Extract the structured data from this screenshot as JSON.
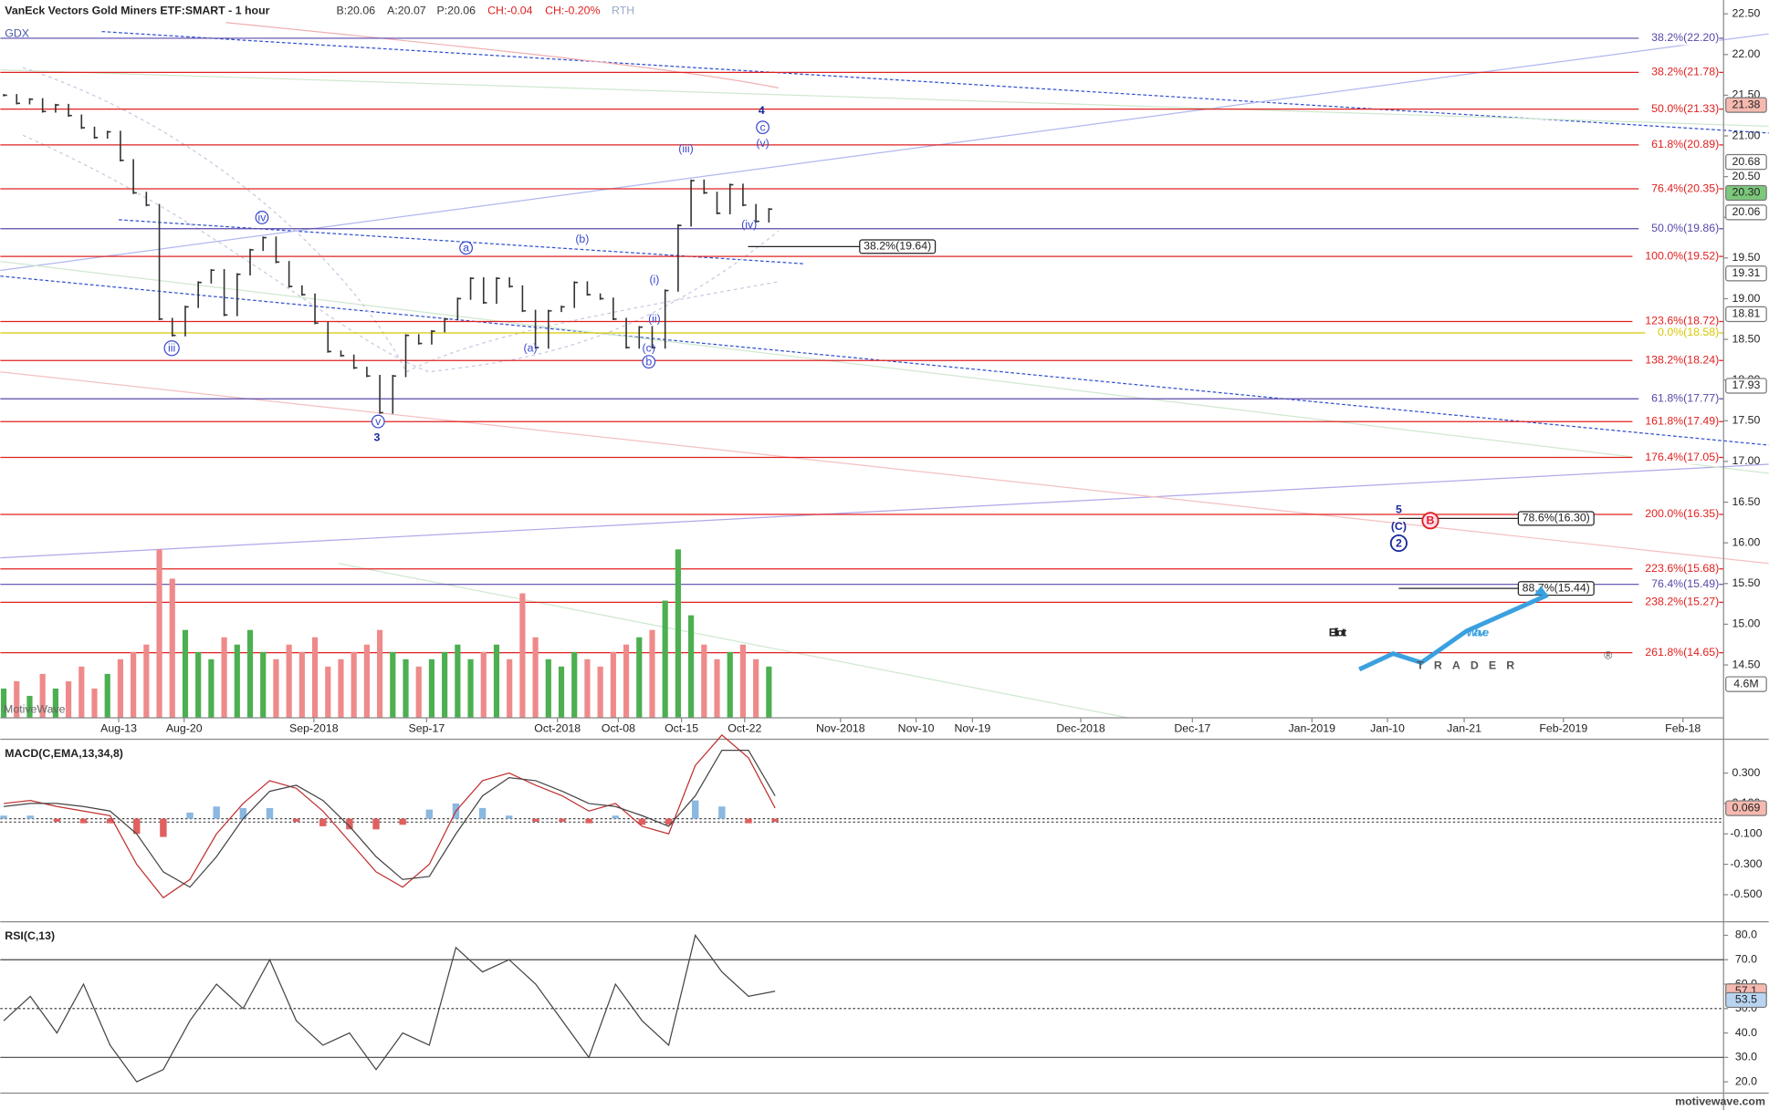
{
  "chart_data": [
    {
      "type": "ohlc",
      "title": "VanEck Vectors Gold Miners ETF:SMART - 1 hour",
      "symbol": "GDX",
      "quote": [
        {
          "text": "B:20.06",
          "color": "#333333"
        },
        {
          "text": "A:20.07",
          "color": "#333333"
        },
        {
          "text": "P:20.06",
          "color": "#333333"
        },
        {
          "text": "CH:-0.04",
          "color": "#e02020"
        },
        {
          "text": "CH:-0.20%",
          "color": "#e02020"
        },
        {
          "text": "RTH",
          "color": "#9aa8c8"
        }
      ],
      "watermark": "MotiveWave",
      "ylim": [
        13.85,
        22.67
      ],
      "yticks": [
        {
          "value": 14.5,
          "label": "14.50"
        },
        {
          "value": 15,
          "label": "15.00"
        },
        {
          "value": 15.5,
          "label": "15.50"
        },
        {
          "value": 16,
          "label": "16.00"
        },
        {
          "value": 16.5,
          "label": "16.50"
        },
        {
          "value": 17,
          "label": "17.00"
        },
        {
          "value": 17.5,
          "label": "17.50"
        },
        {
          "value": 18,
          "label": "18.00"
        },
        {
          "value": 18.5,
          "label": "18.50"
        },
        {
          "value": 19,
          "label": "19.00"
        },
        {
          "value": 19.5,
          "label": "19.50"
        },
        {
          "value": 20,
          "label": "20.00"
        },
        {
          "value": 20.5,
          "label": "20.50"
        },
        {
          "value": 21,
          "label": "21.00"
        },
        {
          "value": 21.5,
          "label": "21.50"
        },
        {
          "value": 22,
          "label": "22.00"
        },
        {
          "value": 22.5,
          "label": "22.50"
        }
      ],
      "xticks": [
        "Aug-13",
        "Aug-20",
        "Sep-2018",
        "Sep-17",
        "Oct-2018",
        "Oct-08",
        "Oct-15",
        "Oct-22",
        "Nov-2018",
        "Nov-10",
        "Nov-19",
        "Dec-2018",
        "Dec-17",
        "Jan-2019",
        "Jan-10",
        "Jan-21",
        "Feb-2019",
        "Feb-18"
      ],
      "bar_color": "#333333",
      "close": [
        21.5,
        21.4,
        21.45,
        21.3,
        21.38,
        21.25,
        21.1,
        20.98,
        21.05,
        20.7,
        20.3,
        20.15,
        18.75,
        18.55,
        18.9,
        19.2,
        19.35,
        18.8,
        19.3,
        19.6,
        19.75,
        19.45,
        19.15,
        19.05,
        18.7,
        18.35,
        18.3,
        18.15,
        18.05,
        17.6,
        18.05,
        18.55,
        18.45,
        18.6,
        18.75,
        19.0,
        19.25,
        18.95,
        19.25,
        19.15,
        18.85,
        18.4,
        18.85,
        18.9,
        19.2,
        19.05,
        19.0,
        18.75,
        18.4,
        18.65,
        18.4,
        19.1,
        19.9,
        20.45,
        20.3,
        20.05,
        20.4,
        20.15,
        19.95,
        20.1
      ],
      "volume": {
        "up_color": "#4caf50",
        "down_color": "#ef8a8a",
        "values": [
          4,
          5,
          3,
          6,
          4,
          5,
          7,
          4,
          6,
          8,
          9,
          10,
          23,
          19,
          12,
          9,
          8,
          11,
          10,
          12,
          9,
          8,
          10,
          9,
          11,
          7,
          8,
          9,
          10,
          12,
          9,
          8,
          7,
          8,
          9,
          10,
          8,
          9,
          10,
          8,
          17,
          11,
          8,
          7,
          9,
          8,
          7,
          9,
          10,
          11,
          12,
          16,
          23,
          14,
          10,
          8,
          9,
          10,
          8,
          7
        ],
        "badge": {
          "value": 4.6,
          "label": "4.6M"
        }
      },
      "levels": [
        {
          "label": "38.2%(22.20)",
          "value": 22.2,
          "color": "#5a48a8"
        },
        {
          "label": "38.2%(21.78)",
          "value": 21.78,
          "color": "#e02020"
        },
        {
          "label": "50.0%(21.33)",
          "value": 21.33,
          "color": "#e02020"
        },
        {
          "label": "61.8%(20.89)",
          "value": 20.89,
          "color": "#e02020"
        },
        {
          "label": "76.4%(20.35)",
          "value": 20.35,
          "color": "#e02020"
        },
        {
          "label": "50.0%(19.86)",
          "value": 19.86,
          "color": "#5a48a8"
        },
        {
          "label": "100.0%(19.52)",
          "value": 19.52,
          "color": "#e02020"
        },
        {
          "label": "123.6%(18.72)",
          "value": 18.72,
          "color": "#e02020"
        },
        {
          "label": "0.0%(18.58)",
          "value": 18.58,
          "color": "#d8c800"
        },
        {
          "label": "138.2%(18.24)",
          "value": 18.24,
          "color": "#e02020"
        },
        {
          "label": "61.8%(17.77)",
          "value": 17.77,
          "color": "#5a48a8"
        },
        {
          "label": "161.8%(17.49)",
          "value": 17.49,
          "color": "#e02020"
        },
        {
          "label": "176.4%(17.05)",
          "value": 17.05,
          "color": "#e02020"
        },
        {
          "label": "200.0%(16.35)",
          "value": 16.35,
          "color": "#e02020"
        },
        {
          "label": "223.6%(15.68)",
          "value": 15.68,
          "color": "#e02020"
        },
        {
          "label": "76.4%(15.49)",
          "value": 15.49,
          "color": "#5a48a8"
        },
        {
          "label": "238.2%(15.27)",
          "value": 15.27,
          "color": "#e02020"
        },
        {
          "label": "261.8%(14.65)",
          "value": 14.65,
          "color": "#e02020"
        }
      ],
      "boxed_levels": [
        {
          "label": "38.2%(19.64)",
          "value": 19.64
        },
        {
          "label": "78.6%(16.30)",
          "value": 16.3
        },
        {
          "label": "88.7%(15.44)",
          "value": 15.44
        }
      ],
      "badges": [
        {
          "value": 21.38,
          "label": "21.38",
          "color": "#f6b9b0"
        },
        {
          "value": 20.68,
          "label": "20.68",
          "color": "#ffffff"
        },
        {
          "value": 20.3,
          "label": "20.30",
          "color": "#7cc87c"
        },
        {
          "value": 20.06,
          "label": "20.06",
          "color": "#ffffff"
        },
        {
          "value": 19.31,
          "label": "19.31",
          "color": "#ffffff"
        },
        {
          "value": 18.81,
          "label": "18.81",
          "color": "#ffffff"
        },
        {
          "value": 17.93,
          "label": "17.93",
          "color": "#ffffff"
        }
      ],
      "wave_labels": [
        {
          "text": "4",
          "color": "#1a2a9a",
          "bold": true
        },
        {
          "text": "c",
          "color": "#3a4ad0",
          "circled": true
        },
        {
          "text": "(v)",
          "color": "#3a4ad0"
        },
        {
          "text": "(iii)",
          "color": "#3a4ad0"
        },
        {
          "text": "(iv)",
          "color": "#3a4ad0"
        },
        {
          "text": "iv",
          "color": "#3a4ad0",
          "circled": true
        },
        {
          "text": "iii",
          "color": "#3a4ad0",
          "circled": true
        },
        {
          "text": "v",
          "color": "#3a4ad0",
          "circled": true
        },
        {
          "text": "3",
          "color": "#1a2a9a",
          "bold": true
        },
        {
          "text": "a",
          "color": "#3a4ad0",
          "circled": true
        },
        {
          "text": "(b)",
          "color": "#3a4ad0"
        },
        {
          "text": "(a)",
          "color": "#3a4ad0"
        },
        {
          "text": "(i)",
          "color": "#3a4ad0"
        },
        {
          "text": "(ii)",
          "color": "#3a4ad0"
        },
        {
          "text": "(c)",
          "color": "#3a4ad0"
        },
        {
          "text": "b",
          "color": "#3a4ad0",
          "circled": true
        },
        {
          "text": "5",
          "color": "#1a2a9a",
          "bold": true
        },
        {
          "text": "(C)",
          "color": "#1a2a9a",
          "bold": true
        },
        {
          "text": "2",
          "color": "#1a2a9a",
          "circled": true,
          "bold": true
        },
        {
          "text": "B",
          "color": "#e02020",
          "circled": true,
          "bold": true
        }
      ]
    },
    {
      "type": "macd",
      "title": "MACD(C,EMA,13,34,8)",
      "ylim": [
        -0.656,
        0.515
      ],
      "yticks": [
        {
          "value": 0.3,
          "label": "0.300"
        },
        {
          "value": 0.1,
          "label": "0.100"
        },
        {
          "value": -0.1,
          "label": "-0.100"
        },
        {
          "value": -0.3,
          "label": "-0.300"
        },
        {
          "value": -0.5,
          "label": "-0.500"
        }
      ],
      "badge": {
        "value": 0.069,
        "label": "0.069",
        "color": "#f6b9b0"
      },
      "series": [
        {
          "color": "#c03030",
          "values": [
            0.1,
            0.12,
            0.08,
            0.05,
            0.02,
            -0.3,
            -0.52,
            -0.4,
            -0.1,
            0.1,
            0.25,
            0.2,
            0.05,
            -0.15,
            -0.35,
            -0.45,
            -0.3,
            0.05,
            0.25,
            0.3,
            0.22,
            0.15,
            0.05,
            0.1,
            -0.05,
            -0.1,
            0.35,
            0.55,
            0.4,
            0.07
          ]
        },
        {
          "color": "#444444",
          "values": [
            0.08,
            0.1,
            0.1,
            0.08,
            0.05,
            -0.1,
            -0.35,
            -0.45,
            -0.25,
            0.0,
            0.18,
            0.22,
            0.12,
            -0.05,
            -0.25,
            -0.4,
            -0.38,
            -0.1,
            0.15,
            0.27,
            0.25,
            0.18,
            0.1,
            0.08,
            0.02,
            -0.05,
            0.15,
            0.45,
            0.45,
            0.15
          ]
        }
      ],
      "histogram": {
        "up_color": "#8ab8e0",
        "down_color": "#e06060",
        "values": [
          0.02,
          0.02,
          -0.02,
          -0.03,
          -0.03,
          -0.1,
          -0.12,
          0.04,
          0.08,
          0.07,
          0.07,
          -0.02,
          -0.05,
          -0.07,
          -0.07,
          -0.04,
          0.06,
          0.1,
          0.07,
          0.02,
          -0.02,
          -0.02,
          -0.03,
          0.02,
          -0.04,
          -0.04,
          0.12,
          0.08,
          -0.03,
          -0.02
        ]
      }
    },
    {
      "type": "rsi",
      "title": "RSI(C,13)",
      "ylim": [
        16.3,
        84.6
      ],
      "yticks": [
        {
          "value": 20,
          "label": "20.0"
        },
        {
          "value": 30,
          "label": "30.0"
        },
        {
          "value": 40,
          "label": "40.0"
        },
        {
          "value": 50,
          "label": "50.0"
        },
        {
          "value": 60,
          "label": "60.0"
        },
        {
          "value": 70,
          "label": "70.0"
        },
        {
          "value": 80,
          "label": "80.0"
        }
      ],
      "levels": [
        {
          "value": 70,
          "style": "solid"
        },
        {
          "value": 50,
          "style": "dashed"
        },
        {
          "value": 30,
          "style": "solid"
        }
      ],
      "badges": [
        {
          "value": 57.1,
          "color": "#f6b9b0"
        },
        {
          "value": 53.5,
          "color": "#b8d4f0"
        }
      ],
      "color": "#444444",
      "values": [
        45,
        55,
        40,
        60,
        35,
        20,
        25,
        45,
        60,
        50,
        70,
        45,
        35,
        40,
        25,
        40,
        35,
        75,
        65,
        70,
        60,
        45,
        30,
        60,
        45,
        35,
        80,
        65,
        55,
        57.1
      ]
    }
  ],
  "branding": {
    "logo_main": "Elliott",
    "logo_accent": "Wave",
    "logo_sub": "TRADER",
    "logo_mark": "®",
    "footer": "motivewave.com"
  }
}
